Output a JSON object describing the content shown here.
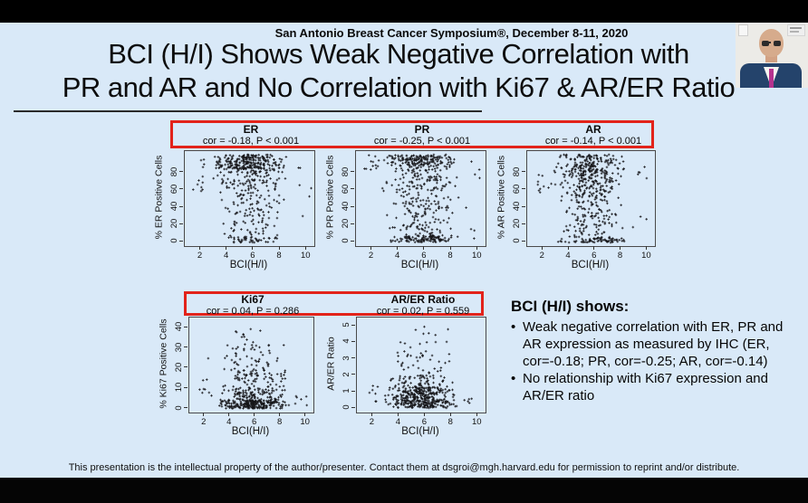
{
  "colors": {
    "slide_background": "#d9e9f8",
    "letterbox": "#000000",
    "highlight_red": "#e2231a",
    "point_color": "#16161a"
  },
  "header": {
    "conference": "San Antonio Breast Cancer Symposium®, December 8-11, 2020"
  },
  "title": {
    "line1": "BCI (H/I) Shows Weak Negative Correlation with",
    "line2": "PR and AR and No Correlation with Ki67 & AR/ER Ratio"
  },
  "webcam": {
    "icons": [
      "presenter-video",
      "institution-logo-left",
      "institution-logo-right"
    ]
  },
  "chart_data": [
    {
      "id": "er",
      "type": "scatter",
      "row": 1,
      "title": "ER",
      "subtitle": "cor = -0.18, P < 0.001",
      "correlation": -0.18,
      "p_value": "< 0.001",
      "xlabel": "BCI(H/I)",
      "ylabel": "% ER Positive Cells",
      "xlim": [
        0.8,
        10.6
      ],
      "ylim": [
        -5,
        105
      ],
      "xticks": [
        2,
        4,
        6,
        8,
        10
      ],
      "yticks": [
        0,
        20,
        40,
        60,
        80
      ],
      "n_points": 523,
      "clusters": [
        {
          "n": 250,
          "x": [
            2.6,
            8.6
          ],
          "y": [
            84,
            101
          ]
        },
        {
          "n": 90,
          "x": [
            2.6,
            8.6
          ],
          "y": [
            64,
            84
          ]
        },
        {
          "n": 75,
          "x": [
            3.0,
            8.6
          ],
          "y": [
            32,
            64
          ]
        },
        {
          "n": 45,
          "x": [
            3.2,
            8.2
          ],
          "y": [
            6,
            32
          ]
        },
        {
          "n": 45,
          "x": [
            3.5,
            8.2
          ],
          "y": [
            -1,
            6
          ]
        },
        {
          "n": 12,
          "x": [
            1.2,
            2.6
          ],
          "y": [
            55,
            100
          ]
        },
        {
          "n": 6,
          "x": [
            8.6,
            10.4
          ],
          "y": [
            20,
            95
          ]
        }
      ]
    },
    {
      "id": "pr",
      "type": "scatter",
      "row": 1,
      "title": "PR",
      "subtitle": "cor = -0.25, P < 0.001",
      "correlation": -0.25,
      "p_value": "< 0.001",
      "xlabel": "BCI(H/I)",
      "ylabel": "% PR Positive Cells",
      "xlim": [
        0.8,
        10.6
      ],
      "ylim": [
        -5,
        105
      ],
      "xticks": [
        2,
        4,
        6,
        8,
        10
      ],
      "yticks": [
        0,
        20,
        40,
        60,
        80
      ],
      "n_points": 550,
      "clusters": [
        {
          "n": 170,
          "x": [
            2.7,
            8.4
          ],
          "y": [
            88,
            101
          ]
        },
        {
          "n": 115,
          "x": [
            2.7,
            8.6
          ],
          "y": [
            58,
            88
          ]
        },
        {
          "n": 70,
          "x": [
            3.0,
            8.6
          ],
          "y": [
            33,
            58
          ]
        },
        {
          "n": 70,
          "x": [
            3.0,
            8.6
          ],
          "y": [
            7,
            33
          ]
        },
        {
          "n": 105,
          "x": [
            3.0,
            8.8
          ],
          "y": [
            -1,
            7
          ]
        },
        {
          "n": 12,
          "x": [
            1.2,
            2.7
          ],
          "y": [
            83,
            101
          ]
        },
        {
          "n": 8,
          "x": [
            8.8,
            10.4
          ],
          "y": [
            0,
            100
          ]
        }
      ]
    },
    {
      "id": "ar",
      "type": "scatter",
      "row": 1,
      "title": "AR",
      "subtitle": "cor = -0.14, P < 0.001",
      "correlation": -0.14,
      "p_value": "< 0.001",
      "xlabel": "BCI(H/I)",
      "ylabel": "% AR Positive Cells",
      "xlim": [
        0.8,
        10.6
      ],
      "ylim": [
        -5,
        105
      ],
      "xticks": [
        2,
        4,
        6,
        8,
        10
      ],
      "yticks": [
        0,
        20,
        40,
        60,
        80
      ],
      "n_points": 538,
      "clusters": [
        {
          "n": 200,
          "x": [
            2.7,
            8.4
          ],
          "y": [
            76,
            101
          ]
        },
        {
          "n": 125,
          "x": [
            2.7,
            8.6
          ],
          "y": [
            52,
            76
          ]
        },
        {
          "n": 80,
          "x": [
            3.0,
            8.6
          ],
          "y": [
            22,
            52
          ]
        },
        {
          "n": 50,
          "x": [
            3.0,
            8.6
          ],
          "y": [
            4,
            22
          ]
        },
        {
          "n": 65,
          "x": [
            3.0,
            8.8
          ],
          "y": [
            -1,
            4
          ]
        },
        {
          "n": 10,
          "x": [
            1.1,
            2.7
          ],
          "y": [
            45,
            100
          ]
        },
        {
          "n": 8,
          "x": [
            8.8,
            10.4
          ],
          "y": [
            0,
            95
          ]
        }
      ]
    },
    {
      "id": "ki67",
      "type": "scatter",
      "row": 2,
      "title": "Ki67",
      "subtitle": "cor = 0.04, P = 0.286",
      "correlation": 0.04,
      "p_value": "= 0.286",
      "xlabel": "BCI(H/I)",
      "ylabel": "% Ki67 Positive Cells",
      "xlim": [
        0.8,
        10.6
      ],
      "ylim": [
        -2,
        45
      ],
      "xticks": [
        2,
        4,
        6,
        8,
        10
      ],
      "yticks": [
        0,
        10,
        20,
        30,
        40
      ],
      "n_points": 488,
      "clusters": [
        {
          "n": 230,
          "x": [
            2.9,
            8.8
          ],
          "y": [
            0,
            4
          ]
        },
        {
          "n": 105,
          "x": [
            3.0,
            8.6
          ],
          "y": [
            4,
            10
          ]
        },
        {
          "n": 80,
          "x": [
            3.0,
            8.6
          ],
          "y": [
            10,
            20
          ]
        },
        {
          "n": 48,
          "x": [
            3.0,
            8.4
          ],
          "y": [
            20,
            32
          ]
        },
        {
          "n": 10,
          "x": [
            3.4,
            7.2
          ],
          "y": [
            32,
            41
          ]
        },
        {
          "n": 9,
          "x": [
            1.0,
            2.8
          ],
          "y": [
            0,
            28
          ]
        },
        {
          "n": 6,
          "x": [
            8.8,
            10.3
          ],
          "y": [
            0,
            8
          ]
        }
      ]
    },
    {
      "id": "arer",
      "type": "scatter",
      "row": 2,
      "title": "AR/ER Ratio",
      "subtitle": "cor = 0.02, P = 0.559",
      "correlation": 0.02,
      "p_value": "= 0.559",
      "xlabel": "BCI(H/I)",
      "ylabel": "AR/ER Ratio",
      "xlim": [
        0.8,
        10.6
      ],
      "ylim": [
        -0.25,
        5.5
      ],
      "xticks": [
        2,
        4,
        6,
        8,
        10
      ],
      "yticks": [
        0,
        1,
        2,
        3,
        4,
        5
      ],
      "n_points": 495,
      "clusters": [
        {
          "n": 290,
          "x": [
            2.8,
            8.6
          ],
          "y": [
            0.3,
            1.3
          ]
        },
        {
          "n": 85,
          "x": [
            3.0,
            8.6
          ],
          "y": [
            0.02,
            0.3
          ]
        },
        {
          "n": 60,
          "x": [
            3.0,
            8.6
          ],
          "y": [
            1.3,
            2.0
          ]
        },
        {
          "n": 35,
          "x": [
            3.0,
            8.4
          ],
          "y": [
            2.0,
            3.5
          ]
        },
        {
          "n": 13,
          "x": [
            3.4,
            8.6
          ],
          "y": [
            3.5,
            5.3
          ]
        },
        {
          "n": 7,
          "x": [
            1.5,
            2.8
          ],
          "y": [
            0.4,
            1.5
          ]
        },
        {
          "n": 5,
          "x": [
            8.7,
            10.3
          ],
          "y": [
            0.2,
            1.2
          ]
        }
      ]
    }
  ],
  "summary": {
    "heading": "BCI (H/I) shows:",
    "bullets": [
      "Weak negative correlation with ER, PR and AR expression as measured by IHC (ER, cor=-0.18; PR, cor=-0.25; AR, cor=-0.14)",
      "No relationship with Ki67 expression and AR/ER ratio"
    ]
  },
  "footer": {
    "text": "This presentation is the intellectual property of the author/presenter. Contact them at dsgroi@mgh.harvard.edu for permission to reprint and/or distribute."
  }
}
